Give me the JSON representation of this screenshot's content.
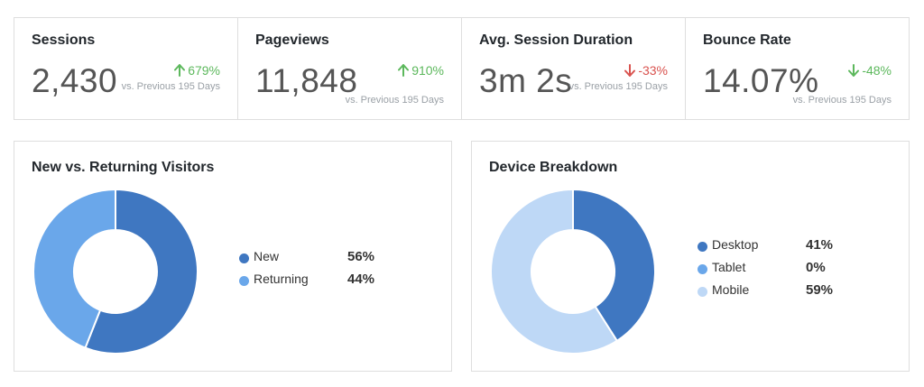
{
  "stats": [
    {
      "title": "Sessions",
      "value": "2,430",
      "change": "679%",
      "direction": "up",
      "compare": "vs. Previous 195 Days"
    },
    {
      "title": "Pageviews",
      "value": "11,848",
      "change": "910%",
      "direction": "up",
      "compare": "vs. Previous 195 Days"
    },
    {
      "title": "Avg. Session Duration",
      "value": "3m 2s",
      "change": "-33%",
      "direction": "down",
      "compare": "vs. Previous 195 Days"
    },
    {
      "title": "Bounce Rate",
      "value": "14.07%",
      "change": "-48%",
      "direction": "down",
      "compare": "vs. Previous 195 Days"
    }
  ],
  "colors": {
    "up": "#5cb85c",
    "down": "#d9534f",
    "bounce_down": "#5cb85c",
    "dark_blue": "#3f77c1",
    "mid_blue": "#6aa7ea",
    "light_blue": "#bed8f6"
  },
  "chart_data": [
    {
      "type": "pie",
      "title": "New vs. Returning Visitors",
      "categories": [
        "New",
        "Returning"
      ],
      "values": [
        56,
        44
      ],
      "labels": [
        "56%",
        "44%"
      ],
      "colors": [
        "#3f77c1",
        "#6aa7ea"
      ],
      "legend": "right"
    },
    {
      "type": "pie",
      "title": "Device Breakdown",
      "categories": [
        "Desktop",
        "Tablet",
        "Mobile"
      ],
      "values": [
        41,
        0,
        59
      ],
      "labels": [
        "41%",
        "0%",
        "59%"
      ],
      "colors": [
        "#3f77c1",
        "#6aa7ea",
        "#bed8f6"
      ],
      "legend": "right"
    }
  ]
}
